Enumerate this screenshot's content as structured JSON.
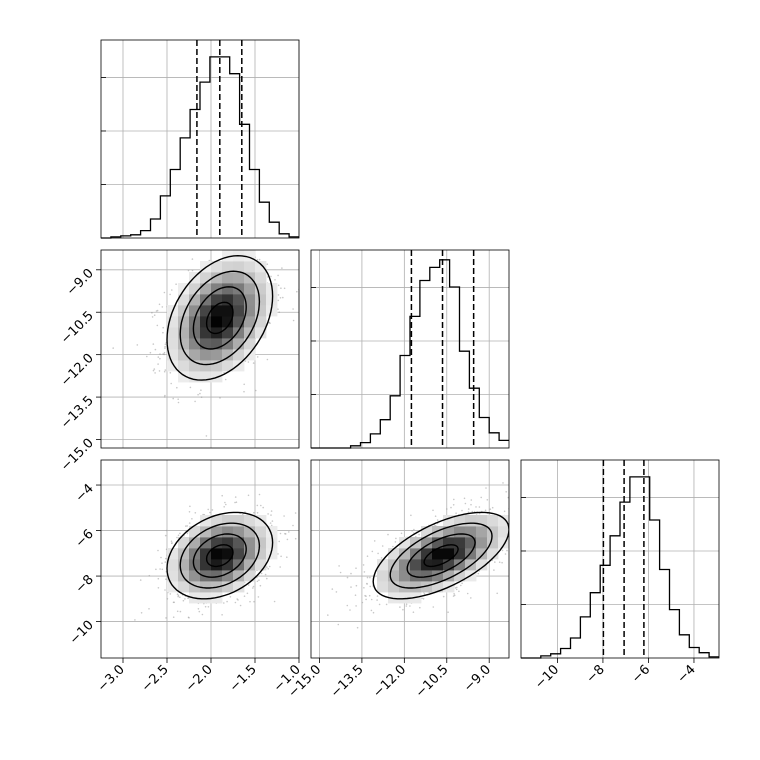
{
  "chart_data": {
    "type": "corner",
    "grid": true,
    "colors": {
      "line": "#000000",
      "grid": "#b0b0b0",
      "scatter": "#9a9a9a",
      "hist_fill": "#000000"
    },
    "params": [
      {
        "ticks": [
          -3.0,
          -2.5,
          -2.0,
          -1.5,
          -1.0
        ],
        "tick_labels": [
          "−3.0",
          "−2.5",
          "−2.0",
          "−1.5",
          "−1.0"
        ],
        "range": [
          -3.25,
          -1.0
        ]
      },
      {
        "ticks": [
          -15.0,
          -13.5,
          -12.0,
          -10.5,
          -9.0
        ],
        "tick_labels": [
          "−15.0",
          "−13.5",
          "−12.0",
          "−10.5",
          "−9.0"
        ],
        "range": [
          -15.3,
          -8.3
        ]
      },
      {
        "ticks": [
          -10,
          -8,
          -6,
          -4
        ],
        "tick_labels": [
          "−10",
          "−8",
          "−6",
          "−4"
        ],
        "range": [
          -11.6,
          -2.9
        ]
      }
    ],
    "histograms": [
      {
        "param": 0,
        "bin_edges": [
          -3.25,
          -3.1375,
          -3.025,
          -2.9125,
          -2.8,
          -2.6875,
          -2.575,
          -2.4625,
          -2.35,
          -2.2375,
          -2.125,
          -2.0125,
          -1.9,
          -1.7875,
          -1.675,
          -1.5625,
          -1.45,
          -1.3375,
          -1.225,
          -1.1125,
          -1.0
        ],
        "counts": [
          0,
          1,
          2,
          3,
          7,
          18,
          40,
          65,
          95,
          122,
          148,
          172,
          172,
          156,
          108,
          65,
          34,
          15,
          4,
          1
        ],
        "ymax": 188,
        "quantiles": [
          -2.16,
          -1.9,
          -1.65
        ]
      },
      {
        "param": 1,
        "bin_edges": [
          -15.3,
          -14.95,
          -14.6,
          -14.25,
          -13.9,
          -13.55,
          -13.2,
          -12.85,
          -12.5,
          -12.15,
          -11.8,
          -11.45,
          -11.1,
          -10.75,
          -10.4,
          -10.05,
          -9.7,
          -9.35,
          -9.0,
          -8.65,
          -8.3
        ],
        "counts": [
          0,
          0,
          0,
          0,
          2,
          5,
          13,
          26,
          48,
          85,
          121,
          154,
          166,
          173,
          148,
          89,
          55,
          28,
          14,
          7
        ],
        "ymax": 182,
        "quantiles": [
          -11.75,
          -10.65,
          -9.55
        ]
      },
      {
        "param": 2,
        "bin_edges": [
          -11.6,
          -11.165,
          -10.73,
          -10.295,
          -9.86,
          -9.425,
          -8.99,
          -8.555,
          -8.12,
          -7.685,
          -7.25,
          -6.815,
          -6.38,
          -5.945,
          -5.51,
          -5.075,
          -4.64,
          -4.205,
          -3.77,
          -3.335,
          -2.9
        ],
        "counts": [
          0,
          0,
          2,
          4,
          9,
          19,
          39,
          62,
          88,
          116,
          148,
          172,
          172,
          131,
          84,
          46,
          22,
          10,
          5,
          1
        ],
        "ymax": 188,
        "quantiles": [
          -7.98,
          -7.07,
          -6.2
        ]
      }
    ],
    "pairs": [
      {
        "x_param": 0,
        "y_param": 1,
        "mean": [
          -1.9,
          -10.7
        ],
        "std": [
          0.3,
          1.1
        ],
        "corr": 0.35
      },
      {
        "x_param": 0,
        "y_param": 2,
        "mean": [
          -1.9,
          -7.1
        ],
        "std": [
          0.3,
          0.95
        ],
        "corr": 0.3
      },
      {
        "x_param": 1,
        "y_param": 2,
        "mean": [
          -10.7,
          -7.1
        ],
        "std": [
          1.2,
          0.95
        ],
        "corr": 0.6
      }
    ],
    "contour_levels_sigma": [
      0.5,
      1.0,
      1.5,
      2.0
    ]
  }
}
